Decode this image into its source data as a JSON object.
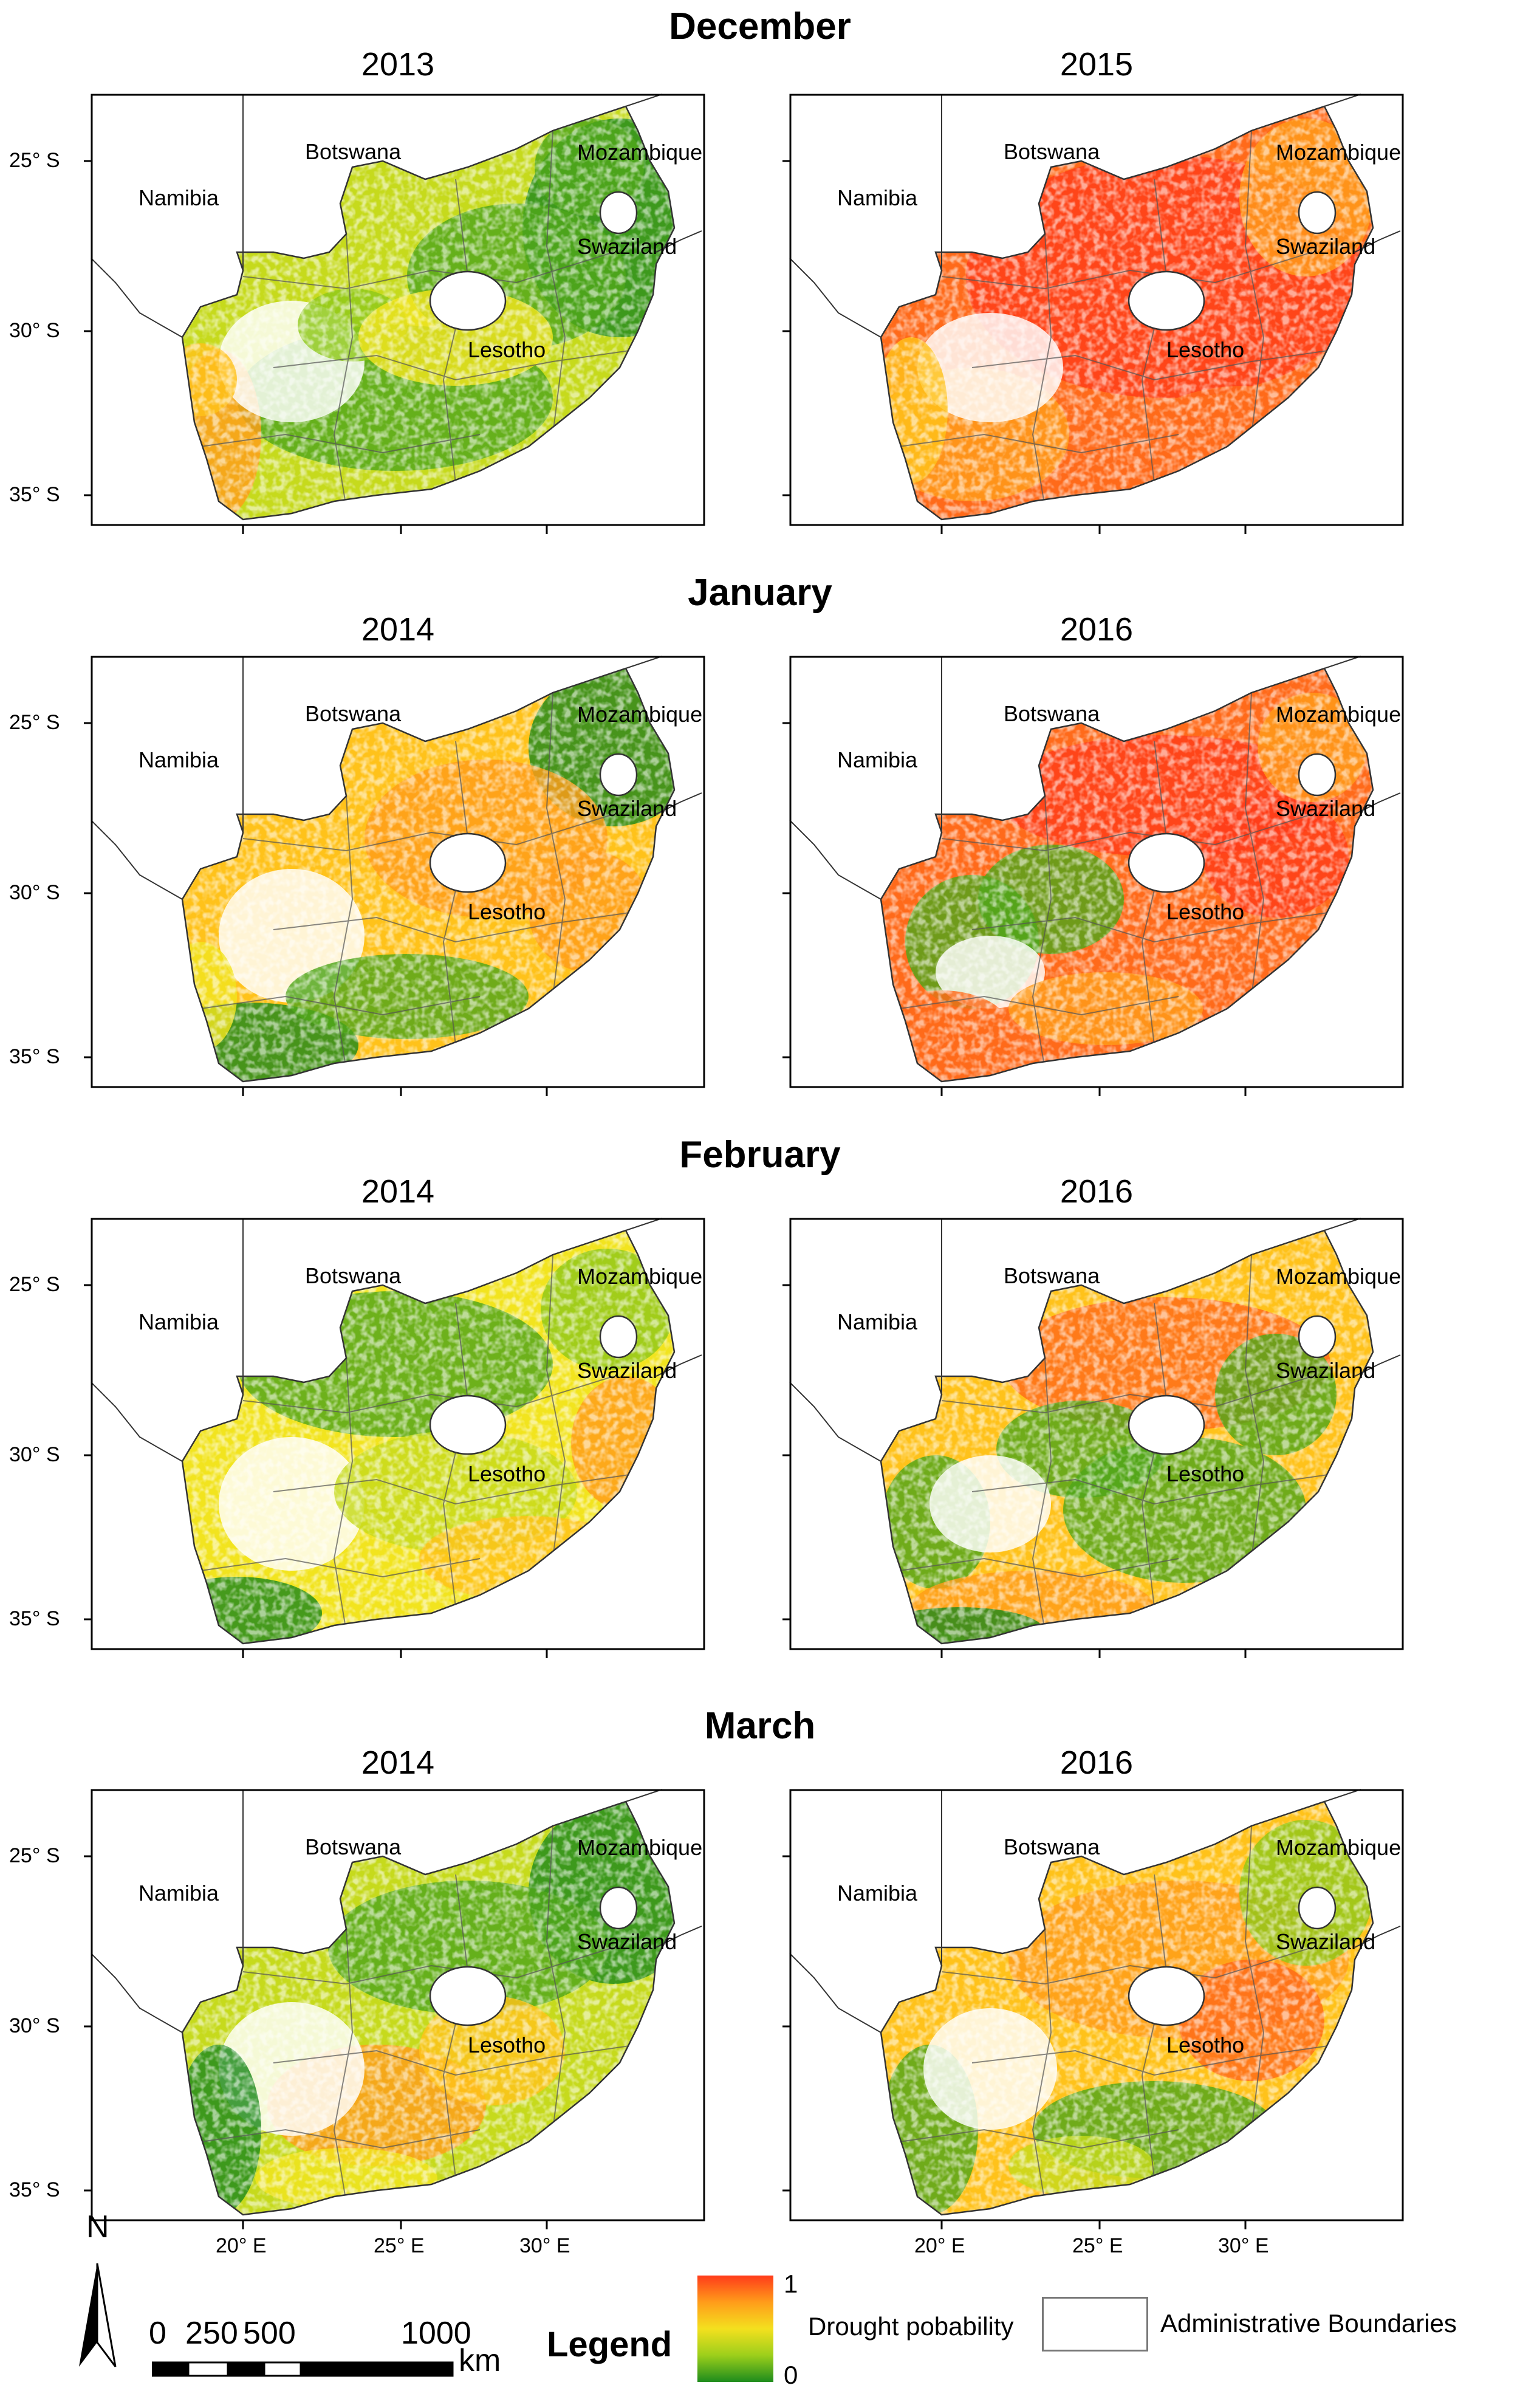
{
  "rows": [
    {
      "month": "December",
      "panels": [
        {
          "year": "2013",
          "scheme": "dec2013"
        },
        {
          "year": "2015",
          "scheme": "dec2015"
        }
      ]
    },
    {
      "month": "January",
      "panels": [
        {
          "year": "2014",
          "scheme": "jan2014"
        },
        {
          "year": "2016",
          "scheme": "jan2016"
        }
      ]
    },
    {
      "month": "February",
      "panels": [
        {
          "year": "2014",
          "scheme": "feb2014"
        },
        {
          "year": "2016",
          "scheme": "feb2016"
        }
      ]
    },
    {
      "month": "March",
      "panels": [
        {
          "year": "2014",
          "scheme": "mar2014"
        },
        {
          "year": "2016",
          "scheme": "mar2016"
        }
      ]
    }
  ],
  "country_labels": {
    "botswana": "Botswana",
    "namibia": "Namibia",
    "mozambique": "Mozambique",
    "swaziland": "Swaziland",
    "lesotho": "Lesotho"
  },
  "lat_labels": [
    "25° S",
    "30° S",
    "35° S"
  ],
  "lon_labels": [
    "20° E",
    "25° E",
    "30° E"
  ],
  "legend": {
    "title": "Legend",
    "max": "1",
    "min": "0",
    "drought_label": "Drought pobability",
    "boundaries_label": "Administrative Boundaries",
    "colors": [
      "#ff3b1a",
      "#ff9c1a",
      "#f4e01e",
      "#9ccf1b",
      "#1e8c1c"
    ]
  },
  "north_label": "N",
  "scale_bar": {
    "labels": [
      "0",
      "250",
      "500",
      "1000"
    ],
    "unit": "km"
  }
}
